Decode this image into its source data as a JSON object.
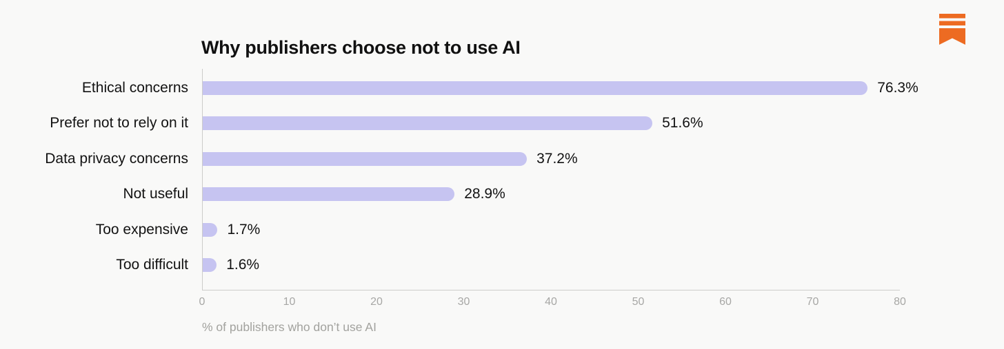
{
  "page": {
    "background": "#f9f9f8"
  },
  "logo": {
    "icon": "bookmark-ribbon-icon",
    "color": "#ED6B22"
  },
  "chart_data": {
    "type": "bar",
    "orientation": "horizontal",
    "title": "Why publishers choose not to use AI",
    "categories": [
      "Ethical concerns",
      "Prefer not to rely on it",
      "Data privacy concerns",
      "Not useful",
      "Too expensive",
      "Too difficult"
    ],
    "values": [
      76.3,
      51.6,
      37.2,
      28.9,
      1.7,
      1.6
    ],
    "value_labels": [
      "76.3%",
      "51.6%",
      "37.2%",
      "28.9%",
      "1.7%",
      "1.6%"
    ],
    "xlabel": "% of publishers who don’t use AI",
    "x_ticks": [
      0,
      10,
      20,
      30,
      40,
      50,
      60,
      70,
      80
    ],
    "xlim": [
      0,
      80
    ],
    "grid": false,
    "legend": false,
    "bar_color": "#C6C4F1",
    "axis_color": "#CCCCCA",
    "text_color": "#121212",
    "tick_color": "#A7A7A5"
  }
}
